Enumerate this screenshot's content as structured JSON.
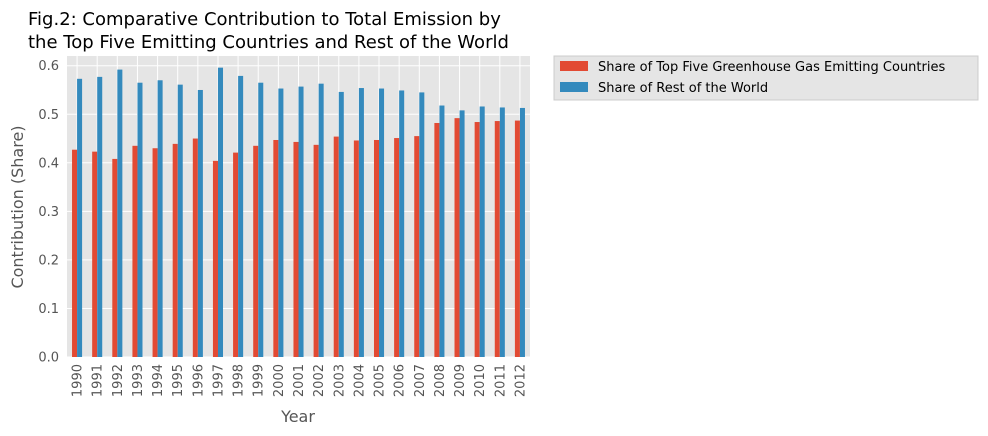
{
  "chart_data": {
    "type": "bar",
    "title_lines": [
      "Fig.2: Comparative Contribution to Total Emission by",
      "the Top Five Emitting Countries and Rest of the World"
    ],
    "xlabel": "Year",
    "ylabel": "Contribution (Share)",
    "ylim": [
      0,
      0.62
    ],
    "yticks": [
      "0.0",
      "0.1",
      "0.2",
      "0.3",
      "0.4",
      "0.5",
      "0.6"
    ],
    "grid": true,
    "legend_position": "outside-top-right",
    "categories": [
      "1990",
      "1991",
      "1992",
      "1993",
      "1994",
      "1995",
      "1996",
      "1997",
      "1998",
      "1999",
      "2000",
      "2001",
      "2002",
      "2003",
      "2004",
      "2005",
      "2006",
      "2007",
      "2008",
      "2009",
      "2010",
      "2011",
      "2012"
    ],
    "series": [
      {
        "name": "Share of Top Five Greenhouse Gas Emitting Countries",
        "color": "#E24A33",
        "values": [
          0.427,
          0.423,
          0.408,
          0.435,
          0.43,
          0.439,
          0.45,
          0.404,
          0.421,
          0.435,
          0.447,
          0.443,
          0.437,
          0.454,
          0.446,
          0.447,
          0.451,
          0.455,
          0.482,
          0.492,
          0.484,
          0.486,
          0.487
        ]
      },
      {
        "name": "Share of Rest of the World",
        "color": "#348ABD",
        "values": [
          0.573,
          0.577,
          0.592,
          0.565,
          0.57,
          0.561,
          0.55,
          0.596,
          0.579,
          0.565,
          0.553,
          0.557,
          0.563,
          0.546,
          0.554,
          0.553,
          0.549,
          0.545,
          0.518,
          0.508,
          0.516,
          0.514,
          0.513
        ]
      }
    ]
  }
}
